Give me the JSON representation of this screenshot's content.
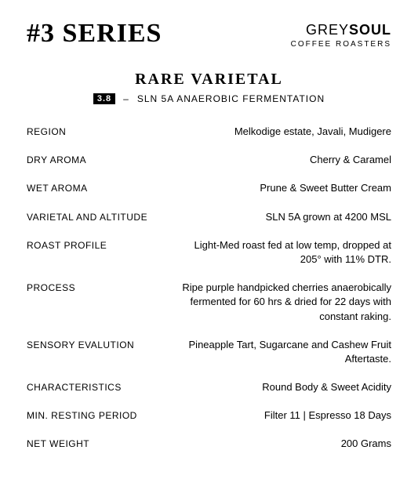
{
  "header": {
    "series_title": "#3 SERIES",
    "brand_grey": "GREY",
    "brand_soul": "SOUL",
    "brand_sub": "COFFEE ROASTERS"
  },
  "subtitle": {
    "rare": "RARE VARIETAL",
    "badge": "3.8",
    "dash": "–",
    "name": "SLN 5A ANAEROBIC FERMENTATION"
  },
  "specs": [
    {
      "label": "REGION",
      "value": "Melkodige estate, Javali, Mudigere"
    },
    {
      "label": "DRY AROMA",
      "value": "Cherry & Caramel"
    },
    {
      "label": "WET AROMA",
      "value": "Prune & Sweet Butter Cream"
    },
    {
      "label": "VARIETAL AND ALTITUDE",
      "value": "SLN 5A grown at 4200 MSL"
    },
    {
      "label": "ROAST PROFILE",
      "value": "Light-Med roast fed at low temp, dropped at 205° with 11% DTR."
    },
    {
      "label": "PROCESS",
      "value": "Ripe purple handpicked cherries anaerobically fermented for 60 hrs & dried for 22 days with constant raking."
    },
    {
      "label": "SENSORY EVALUTION",
      "value": "Pineapple Tart, Sugarcane and Cashew Fruit Aftertaste."
    },
    {
      "label": "CHARACTERISTICS",
      "value": "Round Body & Sweet Acidity"
    },
    {
      "label": "MIN. RESTING PERIOD",
      "value": "Filter 11 | Espresso 18 Days"
    },
    {
      "label": "NET WEIGHT",
      "value": "200 Grams"
    }
  ]
}
